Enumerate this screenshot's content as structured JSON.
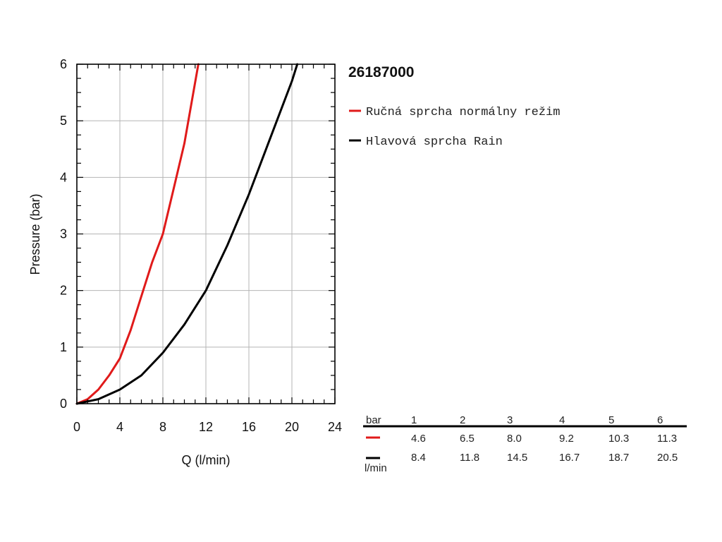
{
  "chart_data": {
    "type": "line",
    "title": "26187000",
    "xlabel": "Q (l/min)",
    "ylabel": "Pressure (bar)",
    "xlim": [
      0,
      24
    ],
    "ylim": [
      0,
      6
    ],
    "x_ticks": [
      "0",
      "4",
      "8",
      "12",
      "16",
      "20",
      "24"
    ],
    "y_ticks": [
      "0",
      "1",
      "2",
      "3",
      "4",
      "5",
      "6"
    ],
    "grid": true,
    "legend_position": "top-right",
    "series": [
      {
        "name": "Ručná sprcha normálny režim",
        "color": "#e01a1a",
        "points": [
          [
            0,
            0
          ],
          [
            1,
            0.08
          ],
          [
            2,
            0.25
          ],
          [
            3,
            0.5
          ],
          [
            4,
            0.8
          ],
          [
            5,
            1.3
          ],
          [
            6,
            1.9
          ],
          [
            7,
            2.5
          ],
          [
            8,
            3.0
          ],
          [
            9,
            3.8
          ],
          [
            10,
            4.6
          ],
          [
            11.3,
            6.0
          ]
        ]
      },
      {
        "name": "Hlavová sprcha Rain",
        "color": "#000000",
        "points": [
          [
            0,
            0
          ],
          [
            2,
            0.08
          ],
          [
            4,
            0.25
          ],
          [
            6,
            0.5
          ],
          [
            8,
            0.9
          ],
          [
            10,
            1.4
          ],
          [
            12,
            2.0
          ],
          [
            14,
            2.8
          ],
          [
            16,
            3.7
          ],
          [
            18,
            4.7
          ],
          [
            20,
            5.7
          ],
          [
            20.5,
            6.0
          ]
        ]
      }
    ]
  },
  "table": {
    "header_label": "bar",
    "unit_label": "l/min",
    "bar_values": [
      "1",
      "2",
      "3",
      "4",
      "5",
      "6"
    ],
    "rows": [
      {
        "color": "#e01a1a",
        "values": [
          "4.6",
          "6.5",
          "8.0",
          "9.2",
          "10.3",
          "11.3"
        ]
      },
      {
        "color": "#000000",
        "values": [
          "8.4",
          "11.8",
          "14.5",
          "16.7",
          "18.7",
          "20.5"
        ]
      }
    ]
  }
}
